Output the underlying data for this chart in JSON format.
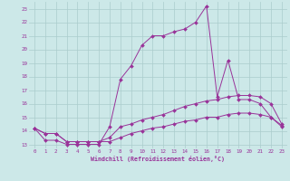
{
  "xlabel": "Windchill (Refroidissement éolien,°C)",
  "bg_color": "#cce8e8",
  "line_color": "#993399",
  "grid_color": "#aacccc",
  "x_values": [
    0,
    1,
    2,
    3,
    4,
    5,
    6,
    7,
    8,
    9,
    10,
    11,
    12,
    13,
    14,
    15,
    16,
    17,
    18,
    19,
    20,
    21,
    22,
    23
  ],
  "line1_y": [
    14.2,
    13.3,
    13.3,
    13.0,
    13.0,
    13.0,
    13.0,
    14.3,
    17.8,
    18.8,
    20.3,
    21.0,
    21.0,
    21.3,
    21.5,
    22.0,
    23.2,
    16.5,
    19.2,
    16.3,
    16.3,
    16.0,
    15.0,
    14.3
  ],
  "line2_y": [
    14.2,
    13.8,
    13.8,
    13.2,
    13.2,
    13.2,
    13.2,
    13.5,
    14.3,
    14.5,
    14.8,
    15.0,
    15.2,
    15.5,
    15.8,
    16.0,
    16.2,
    16.3,
    16.5,
    16.6,
    16.6,
    16.5,
    16.0,
    14.5
  ],
  "line3_y": [
    14.2,
    13.8,
    13.8,
    13.2,
    13.2,
    13.2,
    13.2,
    13.2,
    13.5,
    13.8,
    14.0,
    14.2,
    14.3,
    14.5,
    14.7,
    14.8,
    15.0,
    15.0,
    15.2,
    15.3,
    15.3,
    15.2,
    15.0,
    14.4
  ],
  "ylim": [
    12.7,
    23.5
  ],
  "xlim": [
    -0.5,
    23.5
  ],
  "yticks": [
    13,
    14,
    15,
    16,
    17,
    18,
    19,
    20,
    21,
    22,
    23
  ],
  "xticks": [
    0,
    1,
    2,
    3,
    4,
    5,
    6,
    7,
    8,
    9,
    10,
    11,
    12,
    13,
    14,
    15,
    16,
    17,
    18,
    19,
    20,
    21,
    22,
    23
  ],
  "tick_fontsize": 4.2,
  "xlabel_fontsize": 4.8,
  "marker_size": 2.0,
  "line_width": 0.7
}
